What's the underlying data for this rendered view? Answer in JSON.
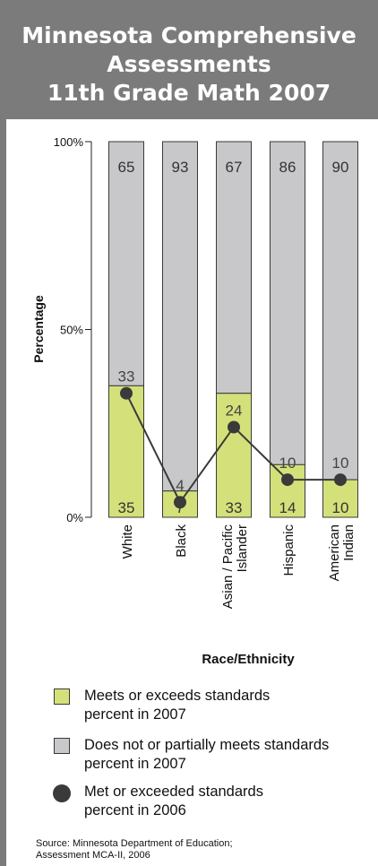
{
  "colors": {
    "header_bg": "#7b7b7b",
    "meets": "#d4e17a",
    "not_meets": "#c8c8ca",
    "line_2006": "#3a3a3a"
  },
  "title_lines": [
    "Minnesota Comprehensive",
    "Assessments",
    "11th Grade Math 2007"
  ],
  "chart_data": {
    "type": "bar",
    "stacked": true,
    "categories": [
      "White",
      "Black",
      "Asian / Pacific Islander",
      "Hispanic",
      "American Indian"
    ],
    "category_lines": [
      [
        "White"
      ],
      [
        "Black"
      ],
      [
        "Asian / Pacific",
        "Islander"
      ],
      [
        "Hispanic"
      ],
      [
        "American",
        "Indian"
      ]
    ],
    "series": [
      {
        "name": "Meets or exceeds standards percent in 2007",
        "type": "bar",
        "values": [
          35,
          7,
          33,
          14,
          10
        ],
        "color": "#d4e17a"
      },
      {
        "name": "Does not or partially meets standards percent in 2007",
        "type": "bar",
        "values": [
          65,
          93,
          67,
          86,
          90
        ],
        "color": "#c8c8ca"
      },
      {
        "name": "Met or exceeded standards percent in 2006",
        "type": "line",
        "values": [
          33,
          4,
          24,
          10,
          10
        ],
        "color": "#3a3a3a"
      }
    ],
    "ylabel": "Percentage",
    "xlabel": "Race/Ethnicity",
    "ylim": [
      0,
      100
    ],
    "yticks": [
      "0%",
      "50%",
      "100%"
    ],
    "legend_position": "bottom"
  },
  "legend": [
    {
      "kind": "swatch",
      "color": "#d4e17a",
      "lines": [
        "Meets or exceeds standards",
        "percent in 2007"
      ]
    },
    {
      "kind": "swatch",
      "color": "#c8c8ca",
      "lines": [
        "Does not or partially meets standards",
        "percent in 2007"
      ]
    },
    {
      "kind": "dot",
      "color": "#3a3a3a",
      "lines": [
        "Met or exceeded standards",
        "percent in 2006"
      ]
    }
  ],
  "source_lines": [
    "Source: Minnesota Department of Education;",
    "Assessment MCA-II, 2006"
  ]
}
